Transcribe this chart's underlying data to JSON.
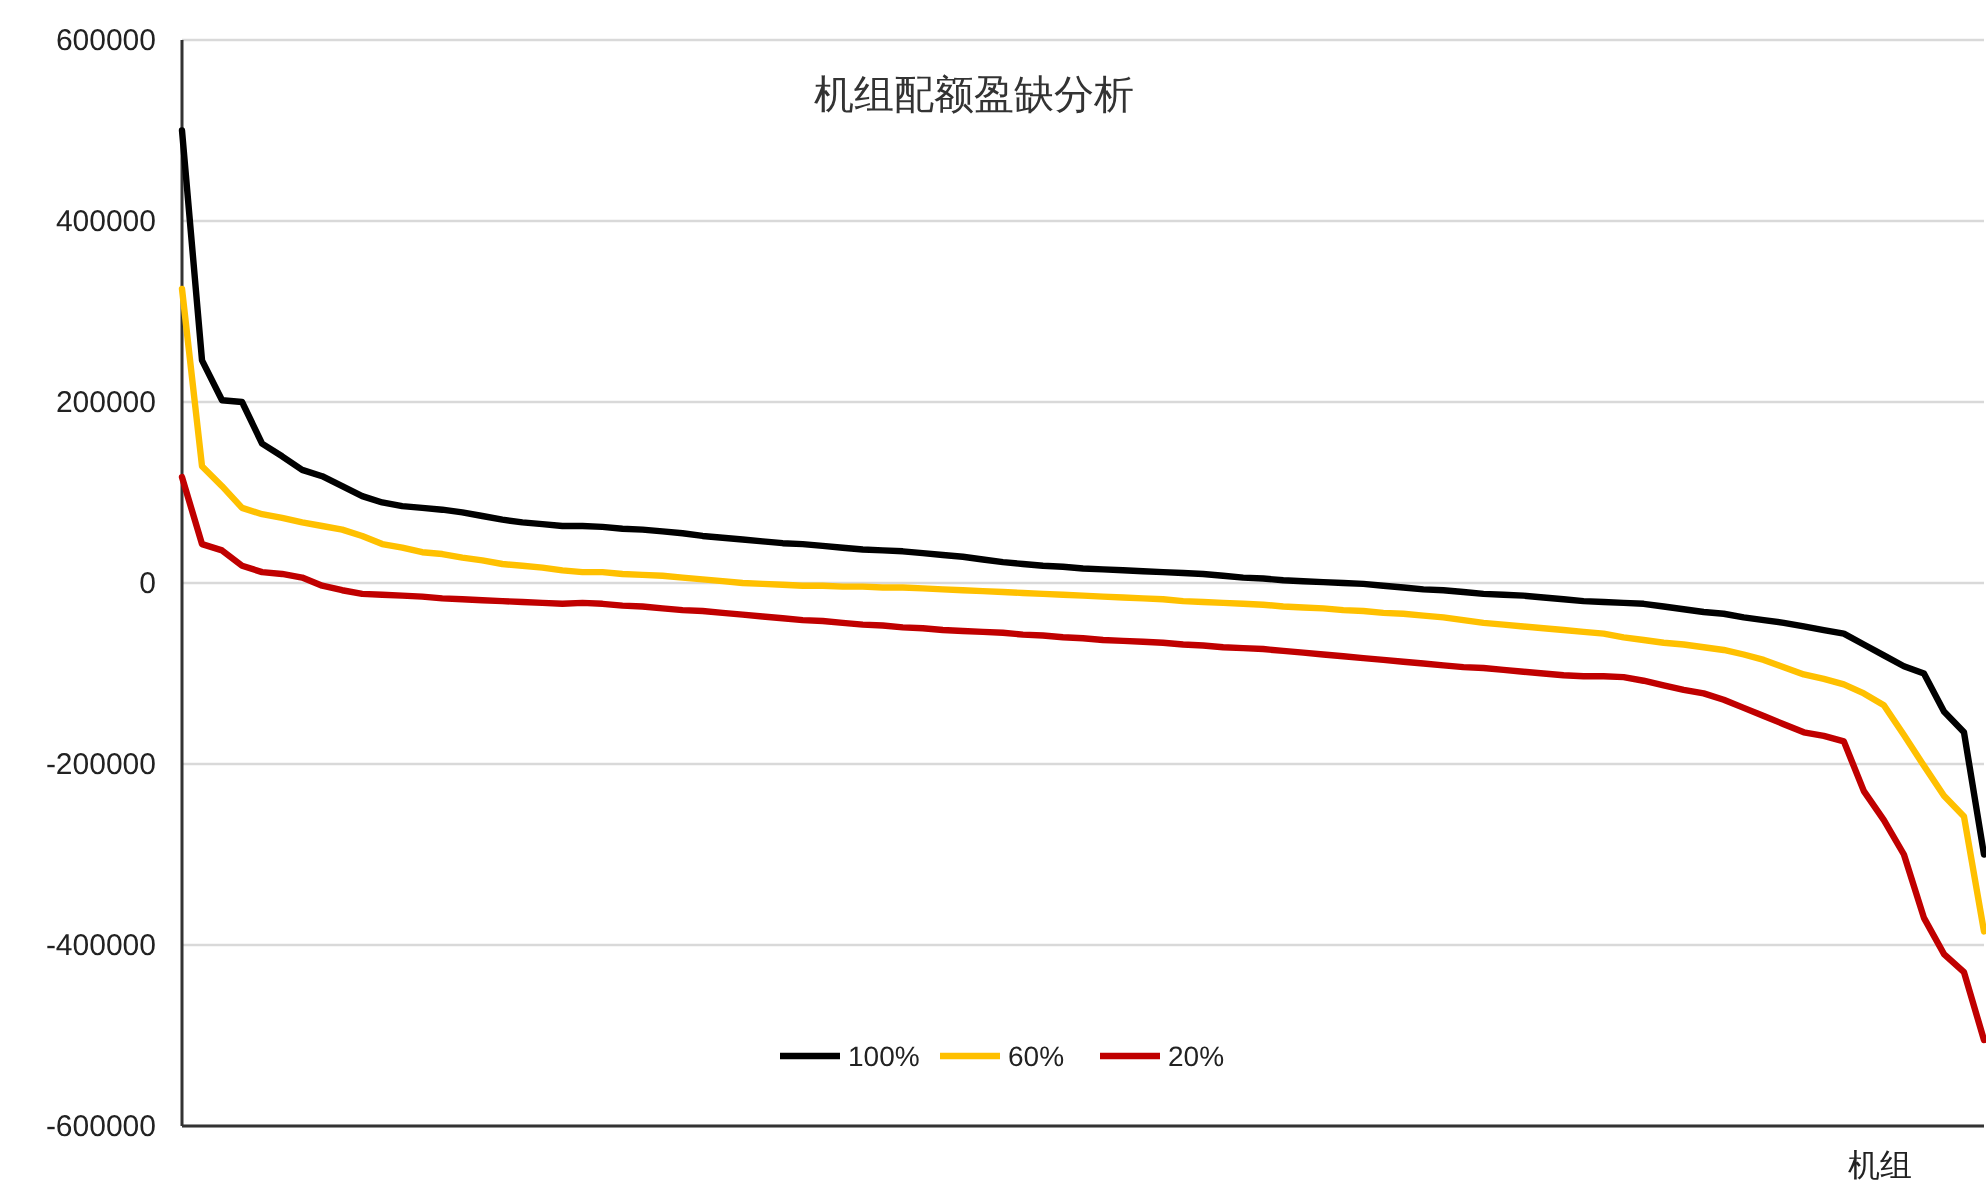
{
  "chart_data": {
    "type": "line",
    "title": "机组配额盈缺分析",
    "xlabel": "机组",
    "categories": [
      null,
      null,
      null,
      null,
      null,
      null,
      null,
      null,
      null,
      null,
      null,
      null,
      null,
      null,
      null,
      null,
      null,
      null,
      null,
      null,
      null,
      null,
      null,
      null,
      null,
      null,
      null,
      null,
      null,
      null,
      null,
      null,
      null,
      null,
      null,
      null,
      null,
      null,
      null,
      null,
      null,
      null,
      null,
      null,
      null,
      null,
      null,
      null,
      null,
      null,
      null,
      null,
      null,
      null,
      null,
      null,
      null,
      null,
      null,
      null,
      null,
      null,
      null,
      null,
      null,
      null,
      null,
      null,
      null,
      null,
      null,
      null,
      null,
      null,
      null,
      null,
      null,
      null,
      null,
      null,
      null,
      null,
      null,
      null,
      null,
      null,
      null,
      null,
      null,
      null,
      null
    ],
    "series": [
      {
        "name": "100%",
        "color": "#000000",
        "values": [
          500000,
          246000,
          202000,
          200000,
          154000,
          140000,
          125000,
          118000,
          107000,
          96000,
          89000,
          85000,
          83000,
          81000,
          78000,
          74000,
          70000,
          67000,
          65000,
          63000,
          63000,
          62000,
          60000,
          59000,
          57000,
          55000,
          52000,
          50000,
          48000,
          46000,
          44000,
          43000,
          41000,
          39000,
          37000,
          36000,
          35000,
          33000,
          31000,
          29000,
          26000,
          23000,
          21000,
          19000,
          18000,
          16000,
          15000,
          14000,
          13000,
          12000,
          11000,
          10000,
          8000,
          6000,
          5000,
          3000,
          2000,
          1000,
          0,
          -1000,
          -3000,
          -5000,
          -7000,
          -8000,
          -10000,
          -12000,
          -13000,
          -14000,
          -16000,
          -18000,
          -20000,
          -21000,
          -22000,
          -23000,
          -26000,
          -29000,
          -32000,
          -34000,
          -38000,
          -41000,
          -44000,
          -48000,
          -52000,
          -56000,
          -68000,
          -80000,
          -92000,
          -100000,
          -142000,
          -165000,
          -300000
        ]
      },
      {
        "name": "60%",
        "color": "#ffc000",
        "values": [
          325000,
          129000,
          107000,
          83000,
          76000,
          72000,
          67000,
          63000,
          59000,
          52000,
          43000,
          39000,
          34000,
          32000,
          28000,
          25000,
          21000,
          19000,
          17000,
          14000,
          12000,
          12000,
          10000,
          9000,
          8000,
          6000,
          4000,
          2000,
          0,
          -1000,
          -2000,
          -3000,
          -3000,
          -4000,
          -4000,
          -5000,
          -5000,
          -6000,
          -7000,
          -8000,
          -9000,
          -10000,
          -11000,
          -12000,
          -13000,
          -14000,
          -15000,
          -16000,
          -17000,
          -18000,
          -20000,
          -21000,
          -22000,
          -23000,
          -24000,
          -26000,
          -27000,
          -28000,
          -30000,
          -31000,
          -33000,
          -34000,
          -36000,
          -38000,
          -41000,
          -44000,
          -46000,
          -48000,
          -50000,
          -52000,
          -54000,
          -56000,
          -60000,
          -63000,
          -66000,
          -68000,
          -71000,
          -74000,
          -79000,
          -85000,
          -93000,
          -101000,
          -106000,
          -112000,
          -122000,
          -135000,
          -168000,
          -202000,
          -235000,
          -258000,
          -385000
        ]
      },
      {
        "name": "20%",
        "color": "#c00000",
        "values": [
          117000,
          43000,
          36000,
          19000,
          12000,
          10000,
          6000,
          -3000,
          -8000,
          -12000,
          -13000,
          -14000,
          -15000,
          -17000,
          -18000,
          -19000,
          -20000,
          -21000,
          -22000,
          -23000,
          -22000,
          -23000,
          -25000,
          -26000,
          -28000,
          -30000,
          -31000,
          -33000,
          -35000,
          -37000,
          -39000,
          -41000,
          -42000,
          -44000,
          -46000,
          -47000,
          -49000,
          -50000,
          -52000,
          -53000,
          -54000,
          -55000,
          -57000,
          -58000,
          -60000,
          -61000,
          -63000,
          -64000,
          -65000,
          -66000,
          -68000,
          -69000,
          -71000,
          -72000,
          -73000,
          -75000,
          -77000,
          -79000,
          -81000,
          -83000,
          -85000,
          -87000,
          -89000,
          -91000,
          -93000,
          -94000,
          -96000,
          -98000,
          -100000,
          -102000,
          -103000,
          -103000,
          -104000,
          -108000,
          -113000,
          -118000,
          -122000,
          -129000,
          -138000,
          -147000,
          -156000,
          -165000,
          -169000,
          -175000,
          -230000,
          -262000,
          -300000,
          -370000,
          -410000,
          -430000,
          -505000
        ]
      }
    ],
    "ylim": [
      -600000,
      600000
    ],
    "yticks": [
      -600000,
      -400000,
      -200000,
      0,
      200000,
      400000,
      600000
    ],
    "grid": "y",
    "legend": "bottom",
    "line_style": "solid",
    "marker": "none"
  }
}
